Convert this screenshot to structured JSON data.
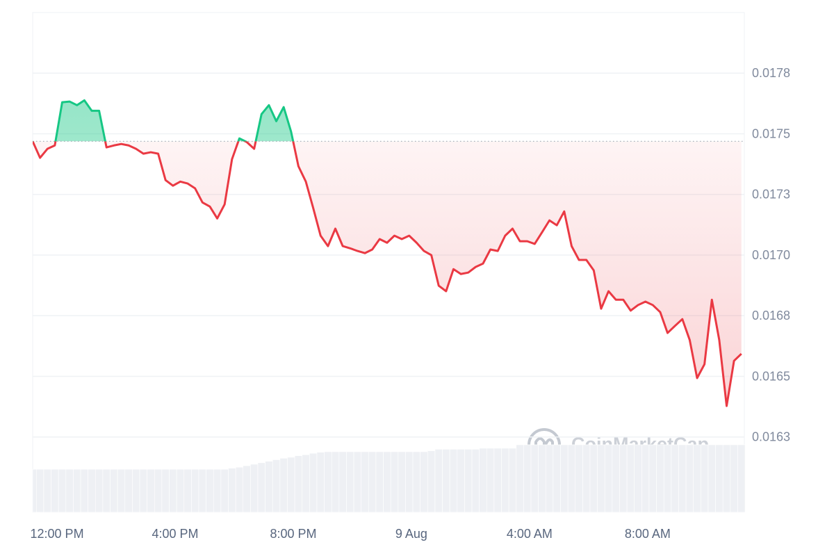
{
  "chart_data": {
    "type": "line",
    "watermark": "CoinMarketCap",
    "values": [
      0.017469,
      0.017401,
      0.017438,
      0.017452,
      0.01763,
      0.017633,
      0.017618,
      0.017638,
      0.017595,
      0.017595,
      0.017444,
      0.017452,
      0.017458,
      0.017452,
      0.017438,
      0.017418,
      0.017424,
      0.017418,
      0.017309,
      0.017286,
      0.017303,
      0.017295,
      0.017275,
      0.017217,
      0.0172,
      0.017151,
      0.017209,
      0.017395,
      0.017481,
      0.017466,
      0.017438,
      0.017581,
      0.017618,
      0.017552,
      0.01761,
      0.017509,
      0.017366,
      0.017303,
      0.017194,
      0.01708,
      0.017037,
      0.017109,
      0.017037,
      0.017028,
      0.017017,
      0.017008,
      0.017023,
      0.017066,
      0.017051,
      0.01708,
      0.017066,
      0.01708,
      0.017051,
      0.017017,
      0.017,
      0.016874,
      0.016851,
      0.016942,
      0.016922,
      0.016928,
      0.016951,
      0.016965,
      0.017023,
      0.017017,
      0.01708,
      0.017109,
      0.017057,
      0.017057,
      0.017046,
      0.017094,
      0.017143,
      0.017123,
      0.01718,
      0.017037,
      0.01698,
      0.01698,
      0.016937,
      0.016779,
      0.016851,
      0.016816,
      0.016816,
      0.016771,
      0.016794,
      0.016808,
      0.016794,
      0.016765,
      0.016679,
      0.016708,
      0.016736,
      0.01665,
      0.016493,
      0.01655,
      0.016816,
      0.01665,
      0.016378,
      0.016564,
      0.016593
    ],
    "color": "#ea3943",
    "up_color": "#16c784",
    "reference_line": 0.017469,
    "volume": [
      8.6,
      8.6,
      8.6,
      8.6,
      8.6,
      8.6,
      8.6,
      8.6,
      8.6,
      8.6,
      8.6,
      8.6,
      8.6,
      8.6,
      8.6,
      8.6,
      8.6,
      8.6,
      8.6,
      8.6,
      8.6,
      8.6,
      8.6,
      8.6,
      8.6,
      8.6,
      8.6,
      8.8,
      9.0,
      9.3,
      9.6,
      9.9,
      10.2,
      10.5,
      10.8,
      11.0,
      11.3,
      11.5,
      11.8,
      12.0,
      12.1,
      12.1,
      12.1,
      12.1,
      12.1,
      12.1,
      12.1,
      12.1,
      12.1,
      12.1,
      12.1,
      12.1,
      12.1,
      12.1,
      12.3,
      12.6,
      12.6,
      12.6,
      12.6,
      12.6,
      12.6,
      12.8,
      12.8,
      12.8,
      12.8,
      12.8,
      13.5,
      13.5,
      13.5,
      13.5,
      13.5,
      13.5,
      13.5,
      13.5,
      13.5,
      13.5,
      13.5,
      13.5,
      13.5,
      13.5,
      13.5,
      13.5,
      13.5,
      13.5,
      13.5,
      13.5,
      13.5,
      13.5,
      13.5,
      13.5,
      13.5,
      13.5,
      13.5,
      13.5,
      13.5,
      13.5,
      13.5
    ],
    "volume_color": "#eef0f4",
    "y2lim": [
      0,
      100
    ],
    "xlim": [
      0,
      96.4
    ],
    "xticks": [
      {
        "value": 3.3,
        "label": "12:00 PM"
      },
      {
        "value": 19.3,
        "label": "4:00 PM"
      },
      {
        "value": 35.3,
        "label": "8:00 PM"
      },
      {
        "value": 51.3,
        "label": "9 Aug"
      },
      {
        "value": 67.3,
        "label": "4:00 AM"
      },
      {
        "value": 83.3,
        "label": "8:00 AM"
      }
    ],
    "ylim": [
      0.01594,
      0.018
    ],
    "yticks": [
      {
        "value": 0.01775,
        "label": "0.0178"
      },
      0.0175,
      {
        "value": 0.01725,
        "label": "0.0173"
      },
      {
        "value": 0.017,
        "label": "0.0170"
      },
      {
        "value": 0.01675,
        "label": "0.0168"
      },
      0.0165,
      {
        "value": 0.01625,
        "label": "0.0163"
      }
    ],
    "grid": true
  }
}
